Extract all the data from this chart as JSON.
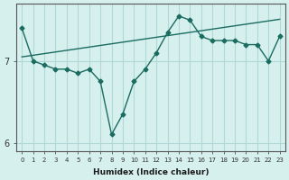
{
  "xlabel": "Humidex (Indice chaleur)",
  "ylabel": "",
  "background_color": "#d6f0ee",
  "grid_color": "#b0d8d4",
  "line_color": "#1a6b60",
  "x_values": [
    0,
    1,
    2,
    3,
    4,
    5,
    6,
    7,
    8,
    9,
    10,
    11,
    12,
    13,
    14,
    15,
    16,
    17,
    18,
    19,
    20,
    21,
    22,
    23
  ],
  "y_main": [
    7.4,
    7.0,
    6.95,
    6.9,
    6.9,
    6.85,
    6.9,
    6.75,
    6.1,
    6.35,
    6.75,
    6.9,
    7.1,
    7.35,
    7.55,
    7.5,
    7.3,
    7.25,
    7.25,
    7.25,
    7.2,
    7.2,
    7.0,
    7.3
  ],
  "y_trend": [
    7.05,
    7.07,
    7.09,
    7.11,
    7.13,
    7.15,
    7.17,
    7.19,
    7.21,
    7.23,
    7.25,
    7.27,
    7.29,
    7.31,
    7.33,
    7.35,
    7.37,
    7.39,
    7.41,
    7.43,
    7.45,
    7.47,
    7.49,
    7.51
  ],
  "ylim": [
    5.9,
    7.7
  ],
  "yticks": [
    6,
    7
  ],
  "xlim": [
    -0.5,
    23.5
  ]
}
